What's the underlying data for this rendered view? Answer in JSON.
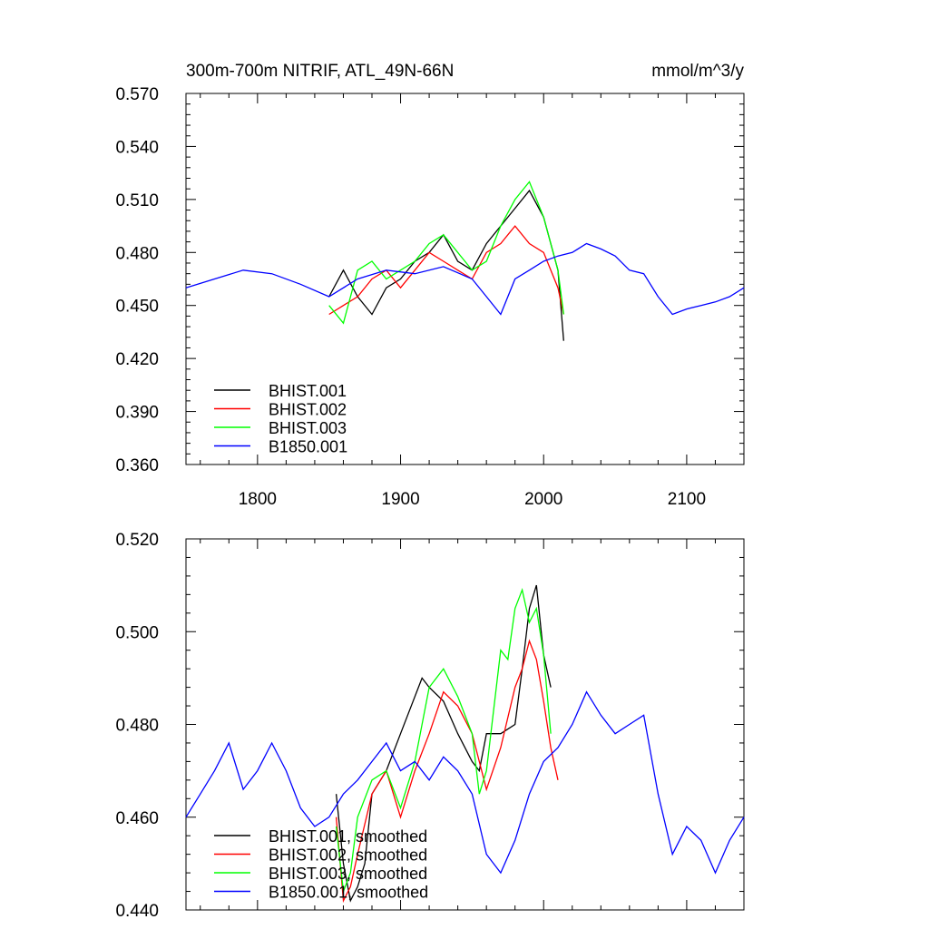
{
  "colors": {
    "BHIST.001": "#000000",
    "BHIST.002": "#ff0000",
    "BHIST.003": "#00ff00",
    "B1850.001": "#0000ff"
  },
  "chart_data": [
    {
      "type": "line",
      "title": "300m-700m NITRIF, ATL_49N-66N",
      "subtitle_right": "mmol/m^3/y",
      "xlabel": "",
      "ylabel": "",
      "xlim": [
        1750,
        2140
      ],
      "ylim": [
        0.36,
        0.57
      ],
      "x_ticks": [
        1800,
        1900,
        2000,
        2100
      ],
      "x_tick_labels": [
        "1800",
        "1900",
        "2000",
        "2100"
      ],
      "y_ticks": [
        0.36,
        0.39,
        0.42,
        0.45,
        0.48,
        0.51,
        0.54,
        0.57
      ],
      "y_tick_labels": [
        "0.360",
        "0.390",
        "0.420",
        "0.450",
        "0.480",
        "0.510",
        "0.540",
        "0.570"
      ],
      "grid": false,
      "legend": "bottom-left",
      "series": [
        {
          "name": "BHIST.001",
          "x": [
            1850,
            1860,
            1870,
            1880,
            1890,
            1900,
            1910,
            1920,
            1930,
            1940,
            1950,
            1960,
            1970,
            1980,
            1990,
            2000,
            2010,
            2014
          ],
          "y": [
            0.455,
            0.47,
            0.455,
            0.445,
            0.46,
            0.465,
            0.475,
            0.48,
            0.49,
            0.475,
            0.47,
            0.485,
            0.495,
            0.505,
            0.515,
            0.5,
            0.47,
            0.43
          ]
        },
        {
          "name": "BHIST.002",
          "x": [
            1850,
            1860,
            1870,
            1880,
            1890,
            1900,
            1910,
            1920,
            1930,
            1940,
            1950,
            1960,
            1970,
            1980,
            1990,
            2000,
            2010,
            2014
          ],
          "y": [
            0.445,
            0.45,
            0.455,
            0.465,
            0.47,
            0.46,
            0.47,
            0.48,
            0.475,
            0.47,
            0.465,
            0.48,
            0.485,
            0.495,
            0.485,
            0.48,
            0.46,
            0.445
          ]
        },
        {
          "name": "BHIST.003",
          "x": [
            1850,
            1860,
            1870,
            1880,
            1890,
            1900,
            1910,
            1920,
            1930,
            1940,
            1950,
            1960,
            1970,
            1980,
            1990,
            2000,
            2010,
            2014
          ],
          "y": [
            0.45,
            0.44,
            0.47,
            0.475,
            0.465,
            0.47,
            0.475,
            0.485,
            0.49,
            0.48,
            0.47,
            0.475,
            0.495,
            0.51,
            0.52,
            0.5,
            0.47,
            0.445
          ]
        },
        {
          "name": "B1850.001",
          "x": [
            1750,
            1770,
            1790,
            1810,
            1830,
            1850,
            1870,
            1890,
            1910,
            1930,
            1950,
            1960,
            1970,
            1980,
            1990,
            2000,
            2010,
            2020,
            2030,
            2040,
            2050,
            2060,
            2070,
            2080,
            2090,
            2100,
            2110,
            2120,
            2130,
            2140
          ],
          "y": [
            0.46,
            0.465,
            0.47,
            0.468,
            0.462,
            0.455,
            0.465,
            0.47,
            0.468,
            0.472,
            0.465,
            0.455,
            0.445,
            0.465,
            0.47,
            0.475,
            0.478,
            0.48,
            0.485,
            0.482,
            0.478,
            0.47,
            0.468,
            0.455,
            0.445,
            0.448,
            0.45,
            0.452,
            0.455,
            0.46
          ]
        }
      ]
    },
    {
      "type": "line",
      "title": "",
      "xlabel": "",
      "ylabel": "",
      "xlim": [
        1750,
        2140
      ],
      "ylim": [
        0.44,
        0.52
      ],
      "x_ticks": [
        1800,
        1900,
        2000,
        2100
      ],
      "y_ticks": [
        0.44,
        0.46,
        0.48,
        0.5,
        0.52
      ],
      "y_tick_labels": [
        "0.440",
        "0.460",
        "0.480",
        "0.500",
        "0.520"
      ],
      "grid": false,
      "legend": "bottom-left",
      "series": [
        {
          "name": "BHIST.001, smoothed",
          "x": [
            1855,
            1860,
            1865,
            1870,
            1875,
            1880,
            1890,
            1900,
            1910,
            1915,
            1920,
            1930,
            1940,
            1950,
            1955,
            1960,
            1970,
            1980,
            1985,
            1990,
            1995,
            2000,
            2005
          ],
          "y": [
            0.465,
            0.45,
            0.442,
            0.445,
            0.45,
            0.465,
            0.47,
            0.478,
            0.486,
            0.49,
            0.488,
            0.485,
            0.478,
            0.472,
            0.47,
            0.478,
            0.478,
            0.48,
            0.492,
            0.505,
            0.51,
            0.495,
            0.488
          ]
        },
        {
          "name": "BHIST.002, smoothed",
          "x": [
            1855,
            1860,
            1865,
            1870,
            1880,
            1890,
            1900,
            1910,
            1920,
            1930,
            1940,
            1950,
            1955,
            1960,
            1970,
            1980,
            1985,
            1990,
            1995,
            2000,
            2005,
            2010
          ],
          "y": [
            0.46,
            0.442,
            0.445,
            0.452,
            0.465,
            0.47,
            0.46,
            0.47,
            0.478,
            0.487,
            0.484,
            0.478,
            0.472,
            0.466,
            0.475,
            0.488,
            0.492,
            0.498,
            0.494,
            0.485,
            0.475,
            0.468
          ]
        },
        {
          "name": "BHIST.003, smoothed",
          "x": [
            1855,
            1860,
            1865,
            1870,
            1880,
            1890,
            1900,
            1910,
            1920,
            1930,
            1940,
            1950,
            1955,
            1960,
            1970,
            1975,
            1980,
            1985,
            1990,
            1995,
            2000,
            2005
          ],
          "y": [
            0.458,
            0.444,
            0.448,
            0.46,
            0.468,
            0.47,
            0.462,
            0.472,
            0.488,
            0.492,
            0.486,
            0.478,
            0.465,
            0.47,
            0.496,
            0.494,
            0.505,
            0.509,
            0.502,
            0.505,
            0.495,
            0.478
          ]
        },
        {
          "name": "B1850.001, smoothed",
          "x": [
            1750,
            1760,
            1770,
            1780,
            1790,
            1800,
            1810,
            1820,
            1830,
            1840,
            1850,
            1860,
            1870,
            1880,
            1890,
            1900,
            1910,
            1920,
            1930,
            1940,
            1950,
            1960,
            1970,
            1980,
            1990,
            2000,
            2010,
            2020,
            2030,
            2040,
            2050,
            2060,
            2070,
            2080,
            2090,
            2100,
            2110,
            2120,
            2130,
            2140
          ],
          "y": [
            0.46,
            0.465,
            0.47,
            0.476,
            0.466,
            0.47,
            0.476,
            0.47,
            0.462,
            0.458,
            0.46,
            0.465,
            0.468,
            0.472,
            0.476,
            0.47,
            0.472,
            0.468,
            0.473,
            0.47,
            0.465,
            0.452,
            0.448,
            0.455,
            0.465,
            0.472,
            0.475,
            0.48,
            0.487,
            0.482,
            0.478,
            0.48,
            0.482,
            0.465,
            0.452,
            0.458,
            0.455,
            0.448,
            0.455,
            0.46
          ]
        }
      ]
    }
  ]
}
